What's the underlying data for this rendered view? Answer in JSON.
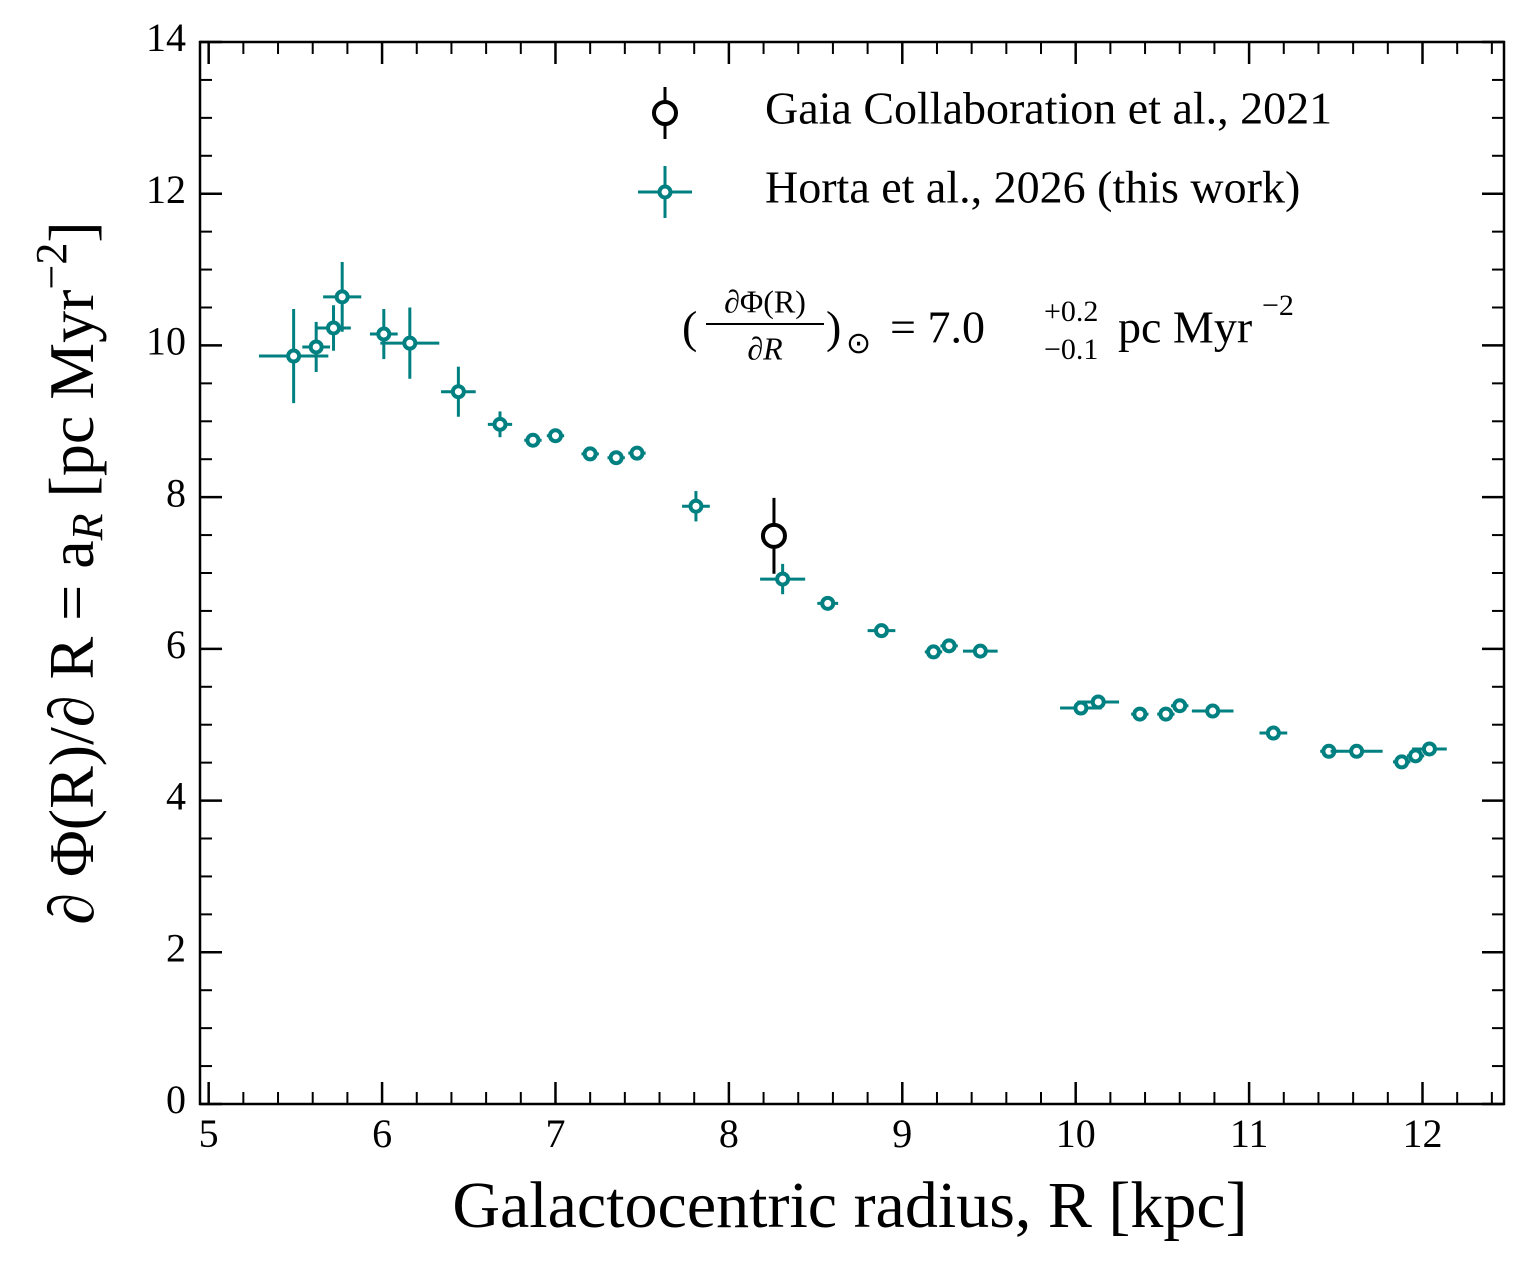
{
  "chart_data": {
    "type": "scatter",
    "xlabel": "Galactocentric radius, R [kpc]",
    "ylabel": {
      "main": "∂ Φ(R)/∂ R = a",
      "sub": "R",
      "unit": " [pc Myr",
      "power": "−2",
      "close": "]"
    },
    "xlim": [
      4.95,
      12.47
    ],
    "ylim": [
      0,
      14
    ],
    "xticks": [
      5,
      6,
      7,
      8,
      9,
      10,
      11,
      12
    ],
    "yticks": [
      0,
      2,
      4,
      6,
      8,
      10,
      12,
      14
    ],
    "xticks_minor": [
      5.2,
      5.4,
      5.6,
      5.8,
      6.2,
      6.4,
      6.6,
      6.8,
      7.2,
      7.4,
      7.6,
      7.8,
      8.2,
      8.4,
      8.6,
      8.8,
      9.2,
      9.4,
      9.6,
      9.8,
      10.2,
      10.4,
      10.6,
      10.8,
      11.2,
      11.4,
      11.6,
      11.8,
      12.2,
      12.4
    ],
    "yticks_minor": [
      0.5,
      1,
      1.5,
      2.5,
      3,
      3.5,
      4.5,
      5,
      5.5,
      6.5,
      7,
      7.5,
      8.5,
      9,
      9.5,
      10.5,
      11,
      11.5,
      12.5,
      13,
      13.5
    ],
    "annotation": {
      "open": "(",
      "numerator": "∂Φ(R)",
      "denominator": "∂R",
      "close": ")",
      "subscript": "⊙",
      "value": "= 7.0",
      "upper": "+0.2",
      "lower": "−0.1",
      "unit": "pc Myr",
      "power": "−2"
    },
    "series": [
      {
        "name": "Gaia Collaboration et al., 2021",
        "color": "#000000",
        "x": [
          8.26
        ],
        "values": [
          7.49
        ],
        "yerr": [
          0.5
        ]
      },
      {
        "name": "Horta et al., 2026 (this work)",
        "color": "#008080",
        "x": [
          5.49,
          5.62,
          5.72,
          5.77,
          6.01,
          6.16,
          6.44,
          6.68,
          6.87,
          7.0,
          7.2,
          7.35,
          7.47,
          7.81,
          8.31,
          8.57,
          8.88,
          9.18,
          9.27,
          9.45,
          10.03,
          10.13,
          10.37,
          10.52,
          10.6,
          10.79,
          11.14,
          11.46,
          11.62,
          11.88,
          11.96,
          12.04
        ],
        "values": [
          9.86,
          9.98,
          10.23,
          10.64,
          10.15,
          10.03,
          9.39,
          8.96,
          8.75,
          8.81,
          8.57,
          8.52,
          8.58,
          7.88,
          6.92,
          6.6,
          6.24,
          5.96,
          6.04,
          5.97,
          5.22,
          5.3,
          5.14,
          5.14,
          5.25,
          5.18,
          4.89,
          4.65,
          4.65,
          4.51,
          4.59,
          4.68
        ],
        "xerr": [
          0.2,
          0.08,
          0.1,
          0.11,
          0.08,
          0.17,
          0.1,
          0.07,
          0.05,
          0.05,
          0.05,
          0.05,
          0.05,
          0.08,
          0.13,
          0.06,
          0.08,
          0.05,
          0.05,
          0.1,
          0.12,
          0.12,
          0.05,
          0.05,
          0.05,
          0.12,
          0.08,
          0.05,
          0.15,
          0.05,
          0.05,
          0.1
        ],
        "yerr": [
          0.62,
          0.33,
          0.3,
          0.46,
          0.33,
          0.47,
          0.33,
          0.17,
          0.06,
          0.08,
          0.06,
          0.06,
          0.06,
          0.2,
          0.2,
          0.08,
          0.08,
          0.06,
          0.06,
          0.06,
          0.08,
          0.08,
          0.06,
          0.06,
          0.08,
          0.06,
          0.08,
          0.06,
          0.06,
          0.06,
          0.06,
          0.06
        ]
      }
    ]
  }
}
